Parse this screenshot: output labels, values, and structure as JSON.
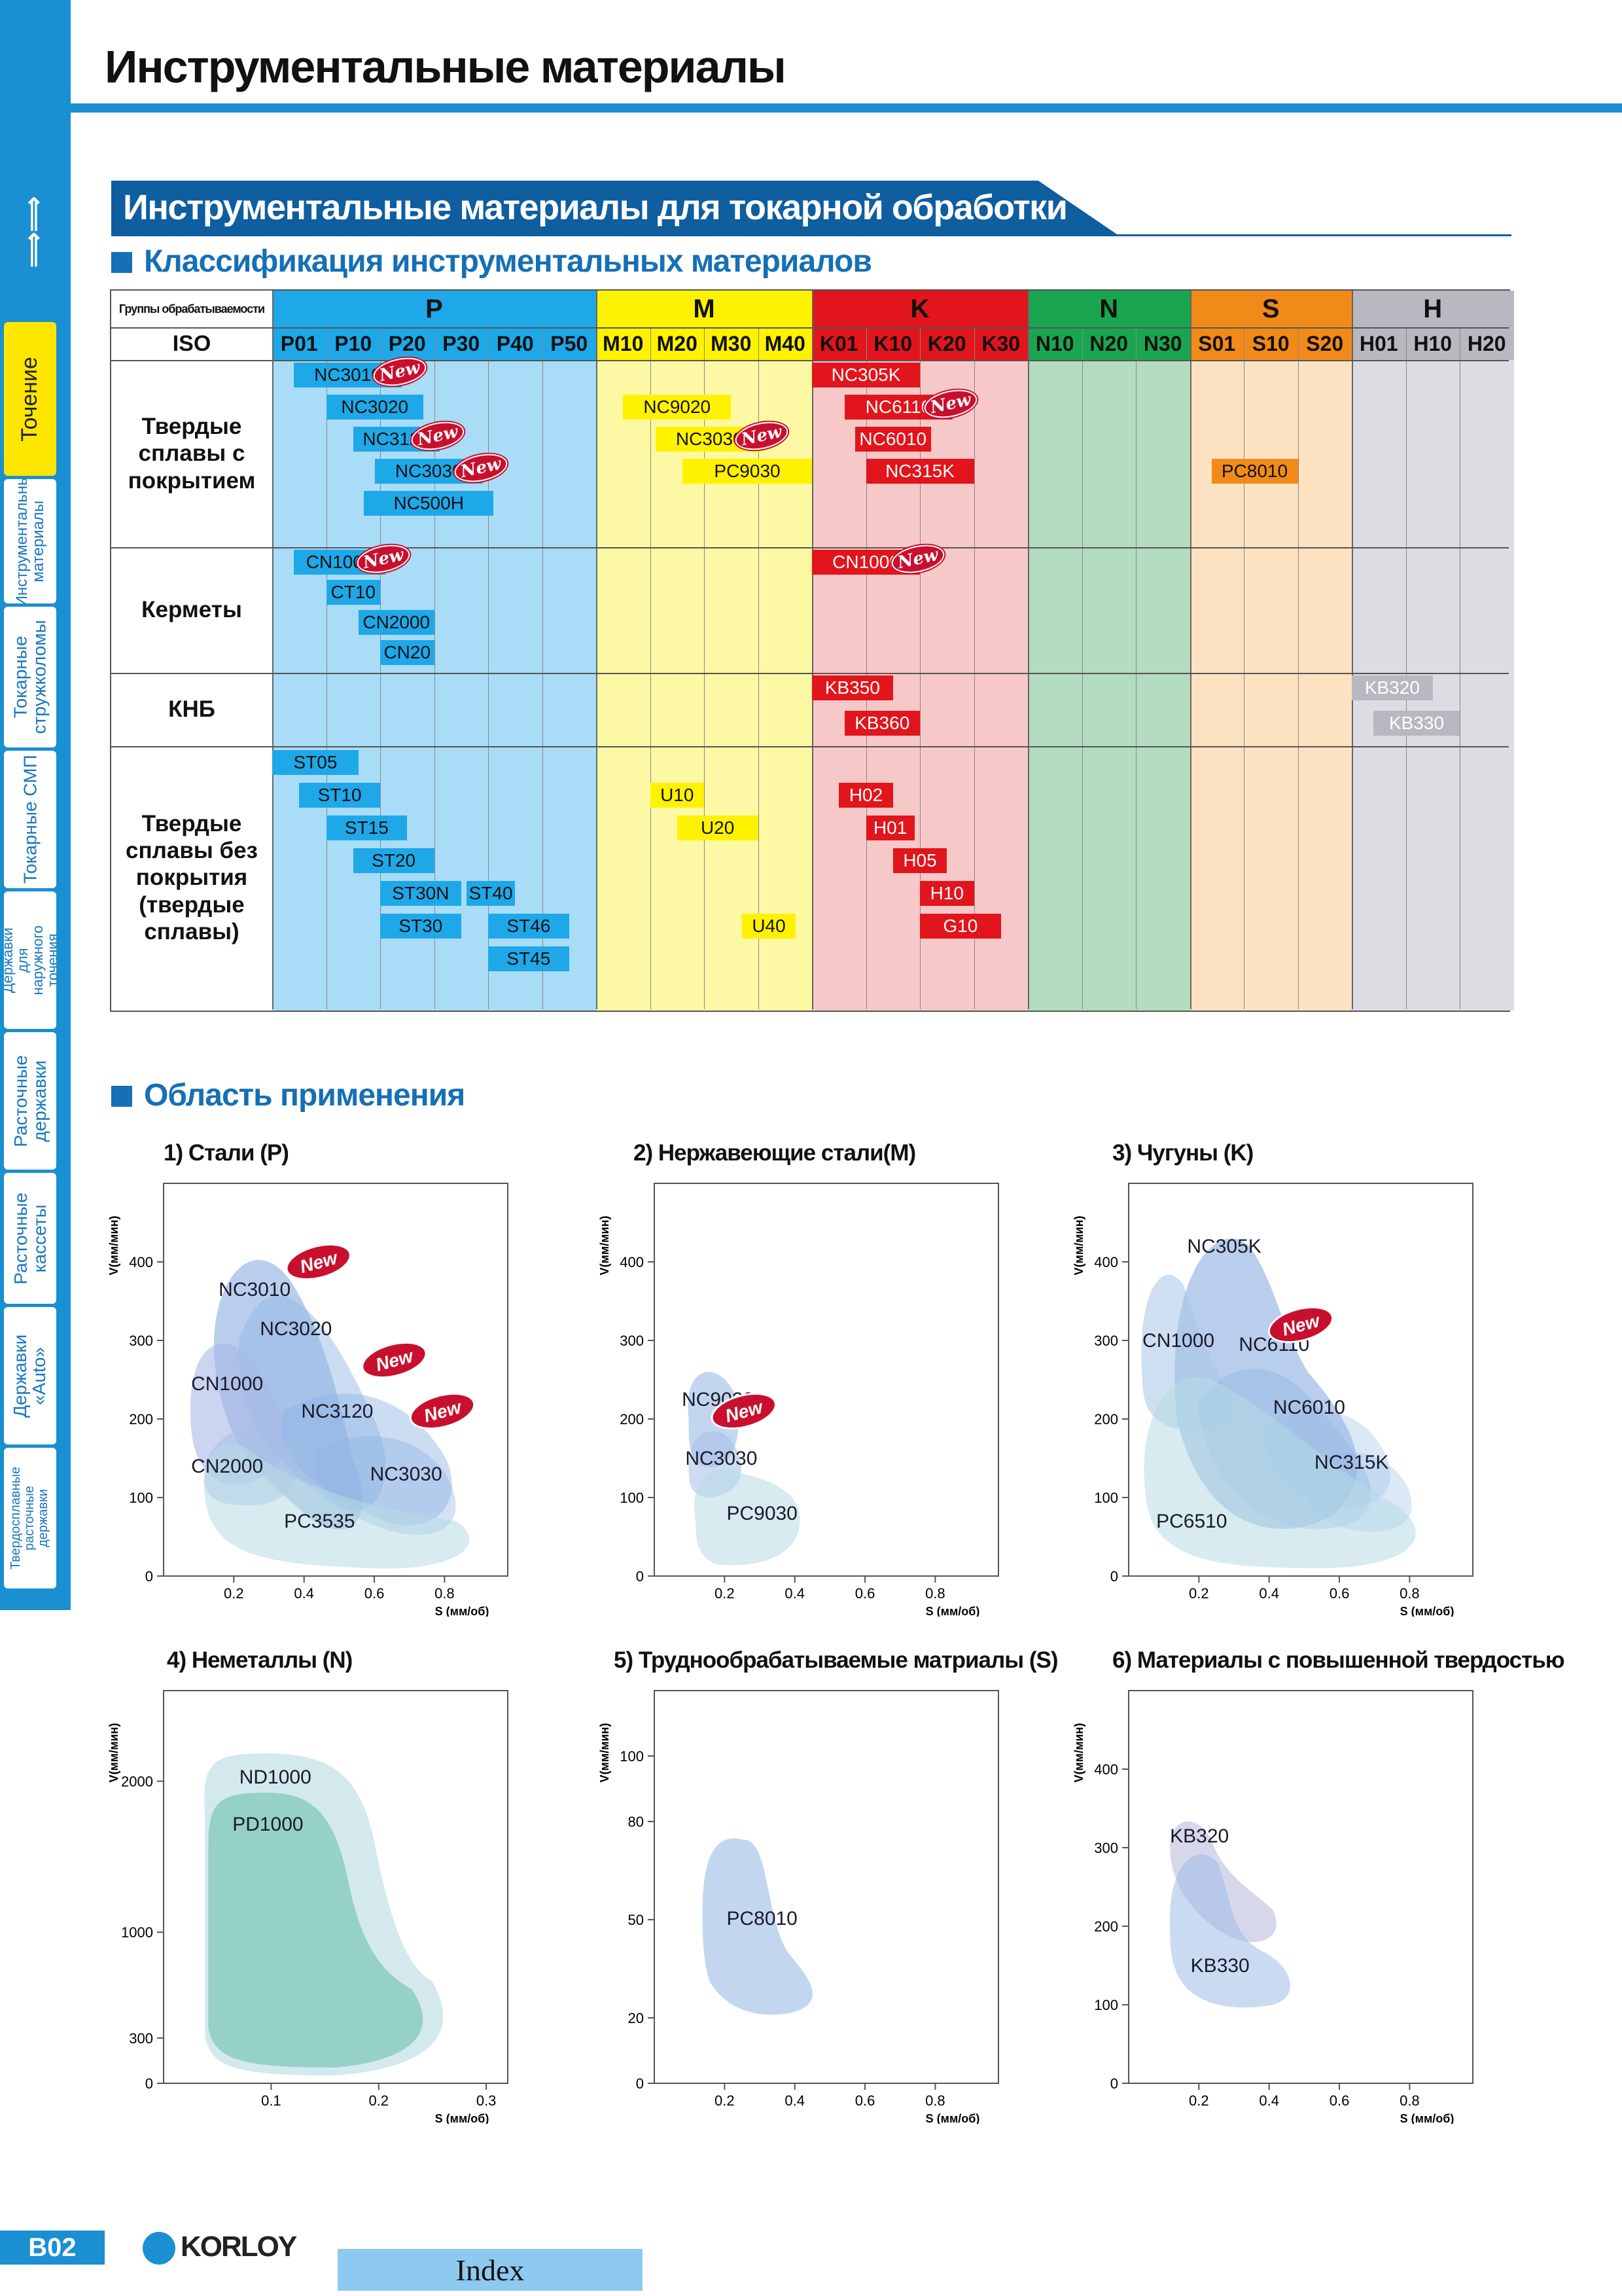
{
  "header": {
    "title": "Инструментальные материалы"
  },
  "sidebar": {
    "arrows": "⟸⟸",
    "tabs": [
      {
        "label": "Точение",
        "active": true
      },
      {
        "label": "Инструментальные материалы",
        "active": false
      },
      {
        "label": "Токарные стружколомы",
        "active": false
      },
      {
        "label": "Токарные СМП",
        "active": false
      },
      {
        "label": "Державки для наружного точения",
        "active": false
      },
      {
        "label": "Расточные державки",
        "active": false
      },
      {
        "label": "Расточные кассеты",
        "active": false
      },
      {
        "label": "Державки «Auto»",
        "active": false
      },
      {
        "label": "Твердосплавные расточные державки",
        "active": false
      }
    ]
  },
  "section": {
    "title": "Инструментальные материалы для токарной обработки"
  },
  "classification": {
    "heading": "Классификация инструментальных материалов",
    "group_header_label": "Группы обрабатываемости",
    "iso_label": "ISO",
    "groups": [
      {
        "name": "P",
        "color": "#1ea8e8",
        "bg": "#a9dcf7",
        "codes": [
          "P01",
          "P10",
          "P20",
          "P30",
          "P40",
          "P50"
        ]
      },
      {
        "name": "M",
        "color": "#fff200",
        "bg": "#fdf8a3",
        "codes": [
          "M10",
          "M20",
          "M30",
          "M40"
        ]
      },
      {
        "name": "K",
        "color": "#e2141c",
        "bg": "#f7c8c8",
        "codes": [
          "K01",
          "K10",
          "K20",
          "K30"
        ]
      },
      {
        "name": "N",
        "color": "#1aa650",
        "bg": "#b4dcc0",
        "codes": [
          "N10",
          "N20",
          "N30"
        ]
      },
      {
        "name": "S",
        "color": "#f28a1a",
        "bg": "#fde2c2",
        "codes": [
          "S01",
          "S10",
          "S20"
        ]
      },
      {
        "name": "H",
        "color": "#b8b8c0",
        "bg": "#dcdce2",
        "codes": [
          "H01",
          "H10",
          "H20"
        ]
      }
    ],
    "rows": [
      {
        "label": "Твердые сплавы с покрытием"
      },
      {
        "label": "Керметы"
      },
      {
        "label": "КНБ"
      },
      {
        "label": "Твердые сплавы без покрытия (твердые сплавы)"
      }
    ],
    "new_badge": "New",
    "grades": [
      {
        "name": "NC3010",
        "group": "P",
        "from": 0.4,
        "to": 2.4,
        "row": 0,
        "line": 0,
        "new": true
      },
      {
        "name": "NC3020",
        "group": "P",
        "from": 1.0,
        "to": 2.8,
        "row": 0,
        "line": 1
      },
      {
        "name": "NC3120",
        "group": "P",
        "from": 1.5,
        "to": 3.1,
        "row": 0,
        "line": 2,
        "new": true
      },
      {
        "name": "NC3030",
        "group": "P",
        "from": 1.9,
        "to": 3.9,
        "row": 0,
        "line": 3,
        "new": true
      },
      {
        "name": "NC500H",
        "group": "P",
        "from": 1.7,
        "to": 4.1,
        "row": 0,
        "line": 4
      },
      {
        "name": "NC9020",
        "group": "M",
        "from": 0.5,
        "to": 2.5,
        "row": 0,
        "line": 1
      },
      {
        "name": "NC3030",
        "group": "M",
        "from": 1.1,
        "to": 3.1,
        "row": 0,
        "line": 2,
        "new": true
      },
      {
        "name": "PC9030",
        "group": "M",
        "from": 1.6,
        "to": 4.0,
        "row": 0,
        "line": 3
      },
      {
        "name": "NC305K",
        "group": "K",
        "from": 0.0,
        "to": 2.0,
        "row": 0,
        "line": 0
      },
      {
        "name": "NC6110",
        "group": "K",
        "from": 0.6,
        "to": 2.6,
        "row": 0,
        "line": 1,
        "new": true
      },
      {
        "name": "NC6010",
        "group": "K",
        "from": 0.8,
        "to": 2.2,
        "row": 0,
        "line": 2
      },
      {
        "name": "NC315K",
        "group": "K",
        "from": 1.0,
        "to": 3.0,
        "row": 0,
        "line": 3
      },
      {
        "name": "PC8010",
        "group": "S",
        "from": 0.4,
        "to": 2.0,
        "row": 0,
        "line": 3
      },
      {
        "name": "CN1000",
        "group": "P",
        "from": 0.4,
        "to": 2.1,
        "row": 1,
        "line": 0,
        "new": true
      },
      {
        "name": "CT10",
        "group": "P",
        "from": 1.0,
        "to": 2.0,
        "row": 1,
        "line": 1
      },
      {
        "name": "CN2000",
        "group": "P",
        "from": 1.6,
        "to": 3.0,
        "row": 1,
        "line": 2
      },
      {
        "name": "CN20",
        "group": "P",
        "from": 2.0,
        "to": 3.0,
        "row": 1,
        "line": 3
      },
      {
        "name": "CN1000",
        "group": "K",
        "from": 0.0,
        "to": 2.0,
        "row": 1,
        "line": 0,
        "new": true
      },
      {
        "name": "KB350",
        "group": "K",
        "from": 0.0,
        "to": 1.5,
        "row": 2,
        "line": 0
      },
      {
        "name": "KB360",
        "group": "K",
        "from": 0.6,
        "to": 2.0,
        "row": 2,
        "line": 1
      },
      {
        "name": "KB320",
        "group": "H",
        "from": 0.0,
        "to": 1.5,
        "row": 2,
        "line": 0
      },
      {
        "name": "KB330",
        "group": "H",
        "from": 0.4,
        "to": 2.0,
        "row": 2,
        "line": 1
      },
      {
        "name": "ST05",
        "group": "P",
        "from": 0.0,
        "to": 1.6,
        "row": 3,
        "line": 0
      },
      {
        "name": "ST10",
        "group": "P",
        "from": 0.5,
        "to": 2.0,
        "row": 3,
        "line": 1
      },
      {
        "name": "ST15",
        "group": "P",
        "from": 1.0,
        "to": 2.5,
        "row": 3,
        "line": 2
      },
      {
        "name": "ST20",
        "group": "P",
        "from": 1.5,
        "to": 3.0,
        "row": 3,
        "line": 3
      },
      {
        "name": "ST30N",
        "group": "P",
        "from": 2.0,
        "to": 3.5,
        "row": 3,
        "line": 4
      },
      {
        "name": "ST40",
        "group": "P",
        "from": 3.6,
        "to": 4.5,
        "row": 3,
        "line": 4
      },
      {
        "name": "ST30",
        "group": "P",
        "from": 2.0,
        "to": 3.5,
        "row": 3,
        "line": 5
      },
      {
        "name": "ST46",
        "group": "P",
        "from": 4.0,
        "to": 5.5,
        "row": 3,
        "line": 5
      },
      {
        "name": "ST45",
        "group": "P",
        "from": 4.0,
        "to": 5.5,
        "row": 3,
        "line": 6
      },
      {
        "name": "U10",
        "group": "M",
        "from": 1.0,
        "to": 2.0,
        "row": 3,
        "line": 1
      },
      {
        "name": "U20",
        "group": "M",
        "from": 1.5,
        "to": 3.0,
        "row": 3,
        "line": 2
      },
      {
        "name": "U40",
        "group": "M",
        "from": 2.7,
        "to": 3.7,
        "row": 3,
        "line": 5
      },
      {
        "name": "H02",
        "group": "K",
        "from": 0.5,
        "to": 1.5,
        "row": 3,
        "line": 1
      },
      {
        "name": "H01",
        "group": "K",
        "from": 1.0,
        "to": 1.9,
        "row": 3,
        "line": 2
      },
      {
        "name": "H05",
        "group": "K",
        "from": 1.5,
        "to": 2.5,
        "row": 3,
        "line": 3
      },
      {
        "name": "H10",
        "group": "K",
        "from": 2.0,
        "to": 3.0,
        "row": 3,
        "line": 4
      },
      {
        "name": "G10",
        "group": "K",
        "from": 2.0,
        "to": 3.5,
        "row": 3,
        "line": 5
      }
    ]
  },
  "application": {
    "heading": "Область применения",
    "charts": [
      {
        "title": "1) Стали (P)",
        "ylabel": "V(мм/мин)",
        "xlabel": "S (мм/об)",
        "yticks": [
          0,
          100,
          200,
          300,
          400
        ],
        "xticks": [
          0.2,
          0.4,
          0.6,
          0.8
        ],
        "regions": [
          "NC3010",
          "NC3020",
          "CN1000",
          "NC3120",
          "CN2000",
          "NC3030",
          "PC3535"
        ],
        "new_count": 3
      },
      {
        "title": "2) Нержавеющие стали(M)",
        "ylabel": "V(мм/мин)",
        "xlabel": "S (мм/об)",
        "yticks": [
          0,
          100,
          200,
          300,
          400
        ],
        "xticks": [
          0.2,
          0.4,
          0.6,
          0.8
        ],
        "regions": [
          "NC9020",
          "NC3030",
          "PC9030"
        ],
        "new_count": 1
      },
      {
        "title": "3) Чугуны (K)",
        "ylabel": "V(мм/мин)",
        "xlabel": "S (мм/об)",
        "yticks": [
          0,
          100,
          200,
          300,
          400
        ],
        "xticks": [
          0.2,
          0.4,
          0.6,
          0.8
        ],
        "regions": [
          "NC305K",
          "CN1000",
          "NC6110",
          "NC6010",
          "NC315K",
          "PC6510"
        ],
        "new_count": 1
      },
      {
        "title": "4) Неметаллы (N)",
        "ylabel": "V(мм/мин)",
        "xlabel": "S (мм/об)",
        "yticks": [
          0,
          300,
          1000,
          2000
        ],
        "xticks": [
          0.1,
          0.2,
          0.3
        ],
        "regions": [
          "ND1000",
          "PD1000"
        ],
        "new_count": 0
      },
      {
        "title": "5) Труднообрабатываемые матриалы (S)",
        "ylabel": "V(мм/мин)",
        "xlabel": "S (мм/об)",
        "yticks": [
          0,
          20,
          50,
          80,
          100
        ],
        "xticks": [
          0.2,
          0.4,
          0.6,
          0.8
        ],
        "regions": [
          "PC8010"
        ],
        "new_count": 0
      },
      {
        "title": "6) Материалы с повышенной твердостью",
        "ylabel": "V(мм/мин)",
        "xlabel": "S (мм/об)",
        "yticks": [
          0,
          100,
          200,
          300,
          400
        ],
        "xticks": [
          0.2,
          0.4,
          0.6,
          0.8
        ],
        "regions": [
          "KB320",
          "KB330"
        ],
        "new_count": 0
      }
    ]
  },
  "footer": {
    "page": "B02",
    "brand": "KORLOY",
    "index_label": "Index"
  }
}
